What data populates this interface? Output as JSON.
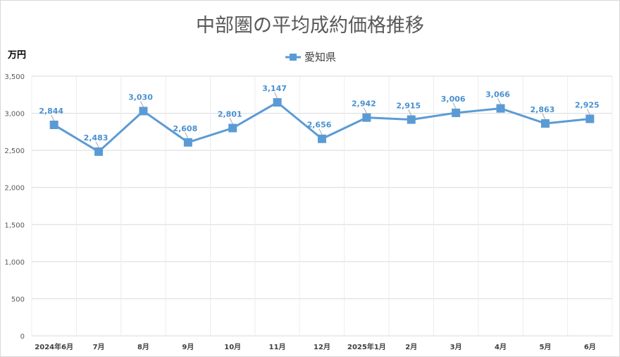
{
  "chart_data": {
    "type": "line",
    "title": "中部圏の平均成約価格推移",
    "ylabel": "万円",
    "xlabel": "",
    "categories": [
      "2024年6月",
      "7月",
      "8月",
      "9月",
      "10月",
      "11月",
      "12月",
      "2025年1月",
      "2月",
      "3月",
      "4月",
      "5月",
      "6月"
    ],
    "series": [
      {
        "name": "愛知県",
        "values": [
          2844,
          2483,
          3030,
          2608,
          2801,
          3147,
          2656,
          2942,
          2915,
          3006,
          3066,
          2863,
          2925
        ],
        "labels": [
          "2,844",
          "2,483",
          "3,030",
          "2,608",
          "2,801",
          "3,147",
          "2,656",
          "2,942",
          "2,915",
          "3,006",
          "3,066",
          "2,863",
          "2,925"
        ]
      }
    ],
    "ylim": [
      0,
      3500
    ],
    "yticks": [
      0,
      500,
      1000,
      1500,
      2000,
      2500,
      3000,
      3500
    ],
    "ytick_labels": [
      "0",
      "500",
      "1,000",
      "1,500",
      "2,000",
      "2,500",
      "3,000",
      "3,500"
    ],
    "grid": true,
    "legend_position": "top-center",
    "colors": {
      "series": "#5b9bd5",
      "label": "#4a90d0",
      "grid": "#d9d9d9"
    }
  }
}
